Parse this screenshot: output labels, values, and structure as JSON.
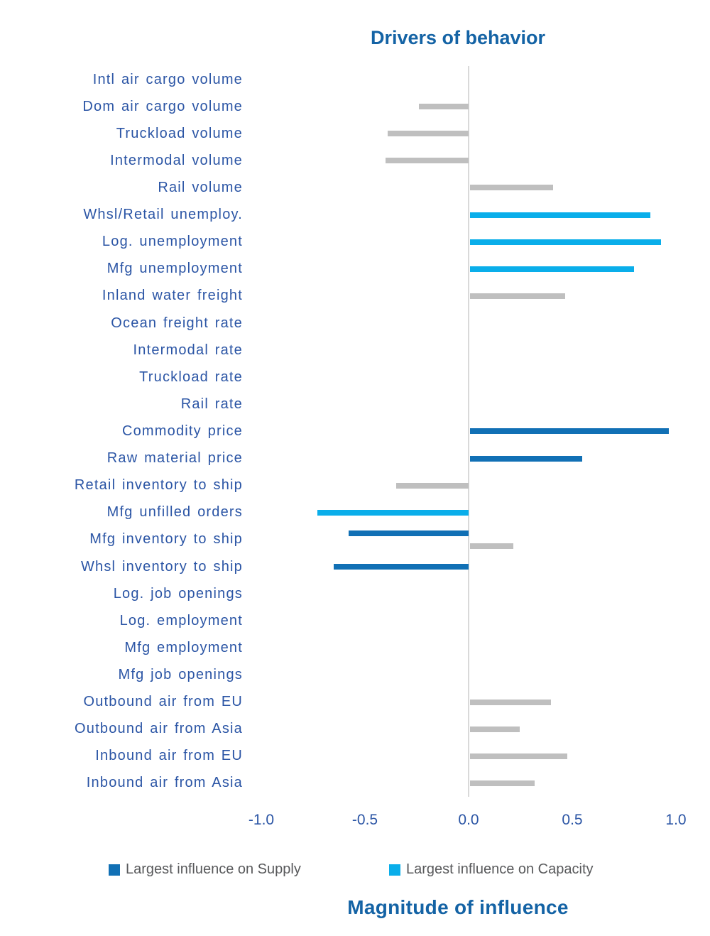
{
  "chart_data": {
    "type": "bar",
    "orientation": "horizontal",
    "title": "Drivers of behavior",
    "xlabel": "Magnitude of influence",
    "xlim": [
      -1.0,
      1.0
    ],
    "x_tick_labels": [
      "-1.0",
      "-0.5",
      "0.0",
      "0.5",
      "1.0"
    ],
    "x_tick_values": [
      -1.0,
      -0.5,
      0.0,
      0.5,
      1.0
    ],
    "grid": "none",
    "legend_position": "bottom",
    "legend": [
      {
        "key": "supply",
        "label": "Largest influence on Supply",
        "color": "#1170B5"
      },
      {
        "key": "capacity",
        "label": "Largest influence on Capacity",
        "color": "#0AAEEA"
      }
    ],
    "colors": {
      "supply": "#1170B5",
      "capacity": "#0AAEEA",
      "other": "#BFBFBF",
      "axis_line": "#D9D9D9",
      "label_text": "#2B55A5",
      "title_text": "#1463A5",
      "legend_text": "#58595B"
    },
    "rows": [
      {
        "category": "Intl air cargo volume",
        "bars": []
      },
      {
        "category": "Dom air cargo volume",
        "bars": [
          {
            "series": "other",
            "value": -0.24
          }
        ]
      },
      {
        "category": "Truckload volume",
        "bars": [
          {
            "series": "other",
            "value": -0.39
          }
        ]
      },
      {
        "category": "Intermodal volume",
        "bars": [
          {
            "series": "other",
            "value": -0.4
          }
        ]
      },
      {
        "category": "Rail volume",
        "bars": [
          {
            "series": "other",
            "value": 0.4
          }
        ]
      },
      {
        "category": "Whsl/Retail unemploy.",
        "bars": [
          {
            "series": "capacity",
            "value": 0.87
          }
        ]
      },
      {
        "category": "Log. unemployment",
        "bars": [
          {
            "series": "capacity",
            "value": 0.92
          }
        ]
      },
      {
        "category": "Mfg unemployment",
        "bars": [
          {
            "series": "capacity",
            "value": 0.79
          }
        ]
      },
      {
        "category": "Inland water freight",
        "bars": [
          {
            "series": "other",
            "value": 0.46
          }
        ]
      },
      {
        "category": "Ocean freight rate",
        "bars": []
      },
      {
        "category": "Intermodal rate",
        "bars": []
      },
      {
        "category": "Truckload rate",
        "bars": []
      },
      {
        "category": "Rail rate",
        "bars": []
      },
      {
        "category": "Commodity price",
        "bars": [
          {
            "series": "supply",
            "value": 0.96
          }
        ]
      },
      {
        "category": "Raw material price",
        "bars": [
          {
            "series": "supply",
            "value": 0.54
          }
        ]
      },
      {
        "category": "Retail inventory to ship",
        "bars": [
          {
            "series": "other",
            "value": -0.35
          }
        ]
      },
      {
        "category": "Mfg unfilled orders",
        "bars": [
          {
            "series": "capacity",
            "value": -0.73
          }
        ]
      },
      {
        "category": "Mfg inventory to ship",
        "bars": [
          {
            "series": "supply",
            "value": -0.58
          },
          {
            "series": "other",
            "value": 0.21
          }
        ]
      },
      {
        "category": "Whsl inventory to ship",
        "bars": [
          {
            "series": "supply",
            "value": -0.65
          }
        ]
      },
      {
        "category": "Log. job openings",
        "bars": []
      },
      {
        "category": "Log. employment",
        "bars": []
      },
      {
        "category": "Mfg employment",
        "bars": []
      },
      {
        "category": "Mfg job openings",
        "bars": []
      },
      {
        "category": "Outbound air from EU",
        "bars": [
          {
            "series": "other",
            "value": 0.39
          }
        ]
      },
      {
        "category": "Outbound air from Asia",
        "bars": [
          {
            "series": "other",
            "value": 0.24
          }
        ]
      },
      {
        "category": "Inbound air from EU",
        "bars": [
          {
            "series": "other",
            "value": 0.47
          }
        ]
      },
      {
        "category": "Inbound air from Asia",
        "bars": [
          {
            "series": "other",
            "value": 0.31
          }
        ]
      }
    ]
  }
}
